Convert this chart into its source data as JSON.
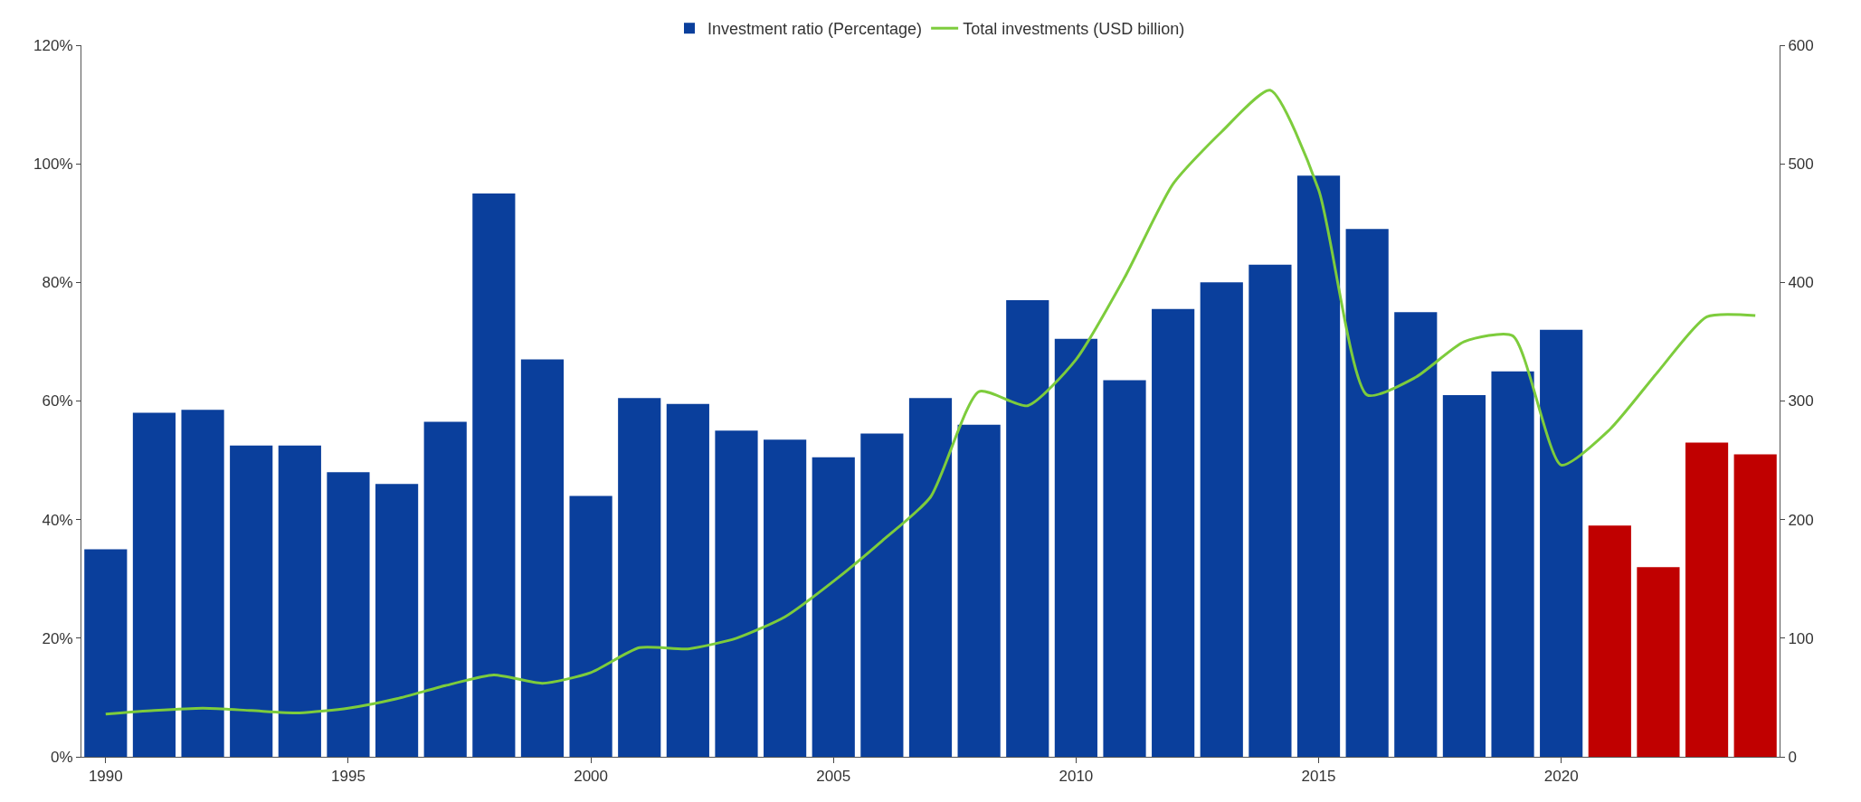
{
  "chart_data": {
    "type": "bar",
    "categories": [
      "1990",
      null,
      null,
      null,
      null,
      "1995",
      null,
      null,
      null,
      null,
      "2000",
      null,
      null,
      null,
      null,
      "2005",
      null,
      null,
      null,
      null,
      "2010",
      null,
      null,
      null,
      null,
      "2015",
      null,
      null,
      null,
      null,
      "2020",
      null,
      null,
      null,
      null
    ],
    "series": [
      {
        "name": "Investment ratio (Percentage)",
        "color": "#0a3f9c",
        "colors": [
          "#0a3f9c",
          "#0a3f9c",
          "#0a3f9c",
          "#0a3f9c",
          "#0a3f9c",
          "#0a3f9c",
          "#0a3f9c",
          "#0a3f9c",
          "#0a3f9c",
          "#0a3f9c",
          "#0a3f9c",
          "#0a3f9c",
          "#0a3f9c",
          "#0a3f9c",
          "#0a3f9c",
          "#0a3f9c",
          "#0a3f9c",
          "#0a3f9c",
          "#0a3f9c",
          "#0a3f9c",
          "#0a3f9c",
          "#0a3f9c",
          "#0a3f9c",
          "#0a3f9c",
          "#0a3f9c",
          "#0a3f9c",
          "#0a3f9c",
          "#0a3f9c",
          "#0a3f9c",
          "#0a3f9c",
          "#0a3f9c",
          "#c00000",
          "#c00000",
          "#c00000",
          "#c00000"
        ],
        "values": [
          35,
          58,
          58.5,
          52.5,
          52.5,
          48,
          46,
          56.5,
          95,
          67,
          44,
          60.5,
          59.5,
          55,
          53.5,
          50.5,
          54.5,
          60.5,
          56,
          77,
          70.5,
          63.5,
          75.5,
          80,
          83,
          98,
          89,
          75,
          61,
          65,
          72,
          39,
          32,
          53,
          51
        ]
      },
      {
        "name": "Total investments (USD billion)",
        "type": "line",
        "axis": "y2",
        "color": "#7dcc3c",
        "values": [
          36,
          39,
          41,
          39,
          37,
          41,
          49,
          60,
          69,
          62,
          71,
          92,
          91,
          100,
          118,
          148,
          182,
          219,
          308,
          296,
          335,
          404,
          483,
          527,
          562,
          478,
          305,
          320,
          350,
          355,
          246,
          276,
          325,
          371,
          372
        ]
      }
    ],
    "ylim": [
      0,
      120
    ],
    "yticks": [
      {
        "value": 0,
        "label": "0%"
      },
      {
        "value": 20,
        "label": "20%"
      },
      {
        "value": 40,
        "label": "40%"
      },
      {
        "value": 60,
        "label": "60%"
      },
      {
        "value": 80,
        "label": "80%"
      },
      {
        "value": 100,
        "label": "100%"
      },
      {
        "value": 120,
        "label": "120%"
      }
    ],
    "y2lim": [
      0,
      600
    ],
    "y2ticks": [
      0,
      100,
      200,
      300,
      400,
      500,
      600
    ],
    "legend": "top"
  }
}
